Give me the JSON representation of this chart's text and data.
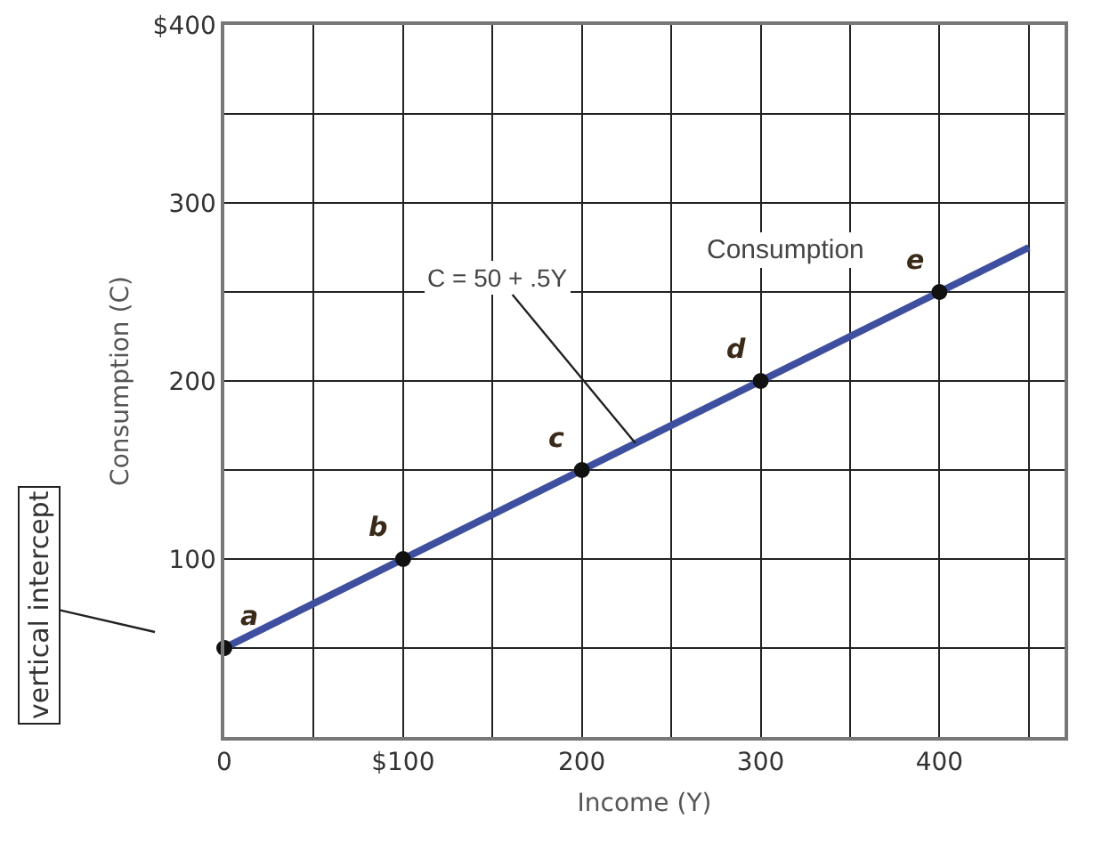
{
  "chart_data": {
    "type": "line",
    "xlabel": "Income (Y)",
    "ylabel": "Consumption (C)",
    "xlim": [
      0,
      470
    ],
    "ylim": [
      0,
      400
    ],
    "xticks": [
      0,
      {
        "value": 50,
        "label": null
      },
      {
        "value": 100,
        "label": "$100"
      },
      {
        "value": 150,
        "label": null
      },
      200,
      {
        "value": 250,
        "label": null
      },
      300,
      {
        "value": 350,
        "label": null
      },
      400,
      {
        "value": 450,
        "label": null
      }
    ],
    "yticks": [
      {
        "value": 0,
        "label": null
      },
      {
        "value": 50,
        "label": null
      },
      100,
      {
        "value": 150,
        "label": null
      },
      200,
      {
        "value": 250,
        "label": null
      },
      300,
      {
        "value": 350,
        "label": null
      },
      {
        "value": 400,
        "label": "$400"
      }
    ],
    "grid": true,
    "series": [
      {
        "color": "#3f4fa0",
        "marker": "none",
        "x": [
          0,
          450
        ],
        "values": [
          50,
          275
        ]
      },
      {
        "type": "scatter",
        "color": "#111111",
        "marker": "circle",
        "x": [
          0,
          100,
          200,
          300,
          400
        ],
        "values": [
          50,
          100,
          150,
          200,
          250
        ]
      }
    ],
    "annotations": [
      {
        "text": "vertical intercept",
        "x": 0,
        "y": 50
      },
      {
        "text": "C = 50 + .5Y",
        "x": 230,
        "y": 165
      },
      "Consumption",
      {
        "text": "a",
        "x": 0,
        "y": 50
      },
      {
        "text": "b",
        "x": 100,
        "y": 100
      },
      {
        "text": "c",
        "x": 200,
        "y": 150
      },
      {
        "text": "d",
        "x": 300,
        "y": 200
      },
      {
        "text": "e",
        "x": 400,
        "y": 250
      }
    ]
  }
}
